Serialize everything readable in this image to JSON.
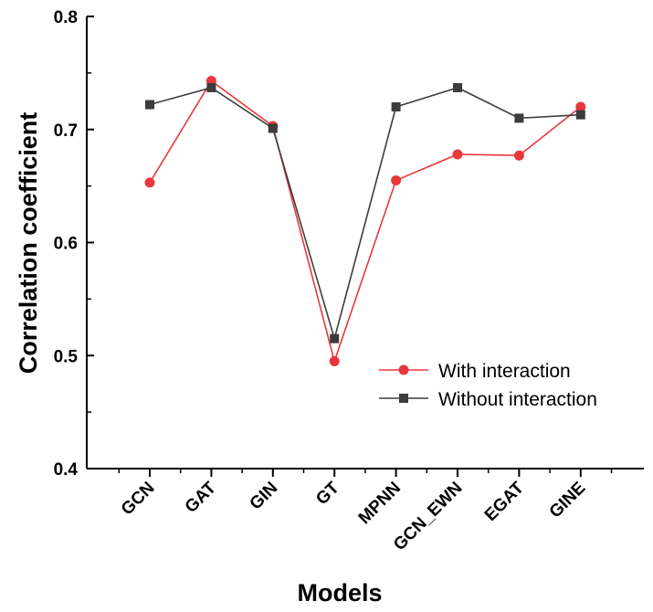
{
  "chart_data": {
    "type": "line",
    "title": "",
    "xlabel": "Models",
    "ylabel": "Correlation coefficient",
    "categories": [
      "GCN",
      "GAT",
      "GIN",
      "GT",
      "MPNN",
      "GCN_EWN",
      "EGAT",
      "GINE"
    ],
    "ylim": [
      0.4,
      0.8
    ],
    "yticks": [
      "0.4",
      "0.5",
      "0.6",
      "0.7",
      "0.8"
    ],
    "grid": false,
    "legend_position": "lower-right",
    "series": [
      {
        "name": "With interaction",
        "color": "#e8383d",
        "marker": "circle",
        "values": [
          0.653,
          0.743,
          0.703,
          0.495,
          0.655,
          0.678,
          0.677,
          0.72
        ]
      },
      {
        "name": "Without interaction",
        "color": "#3c3c3c",
        "marker": "square",
        "values": [
          0.722,
          0.737,
          0.701,
          0.515,
          0.72,
          0.737,
          0.71,
          0.713
        ]
      }
    ]
  }
}
